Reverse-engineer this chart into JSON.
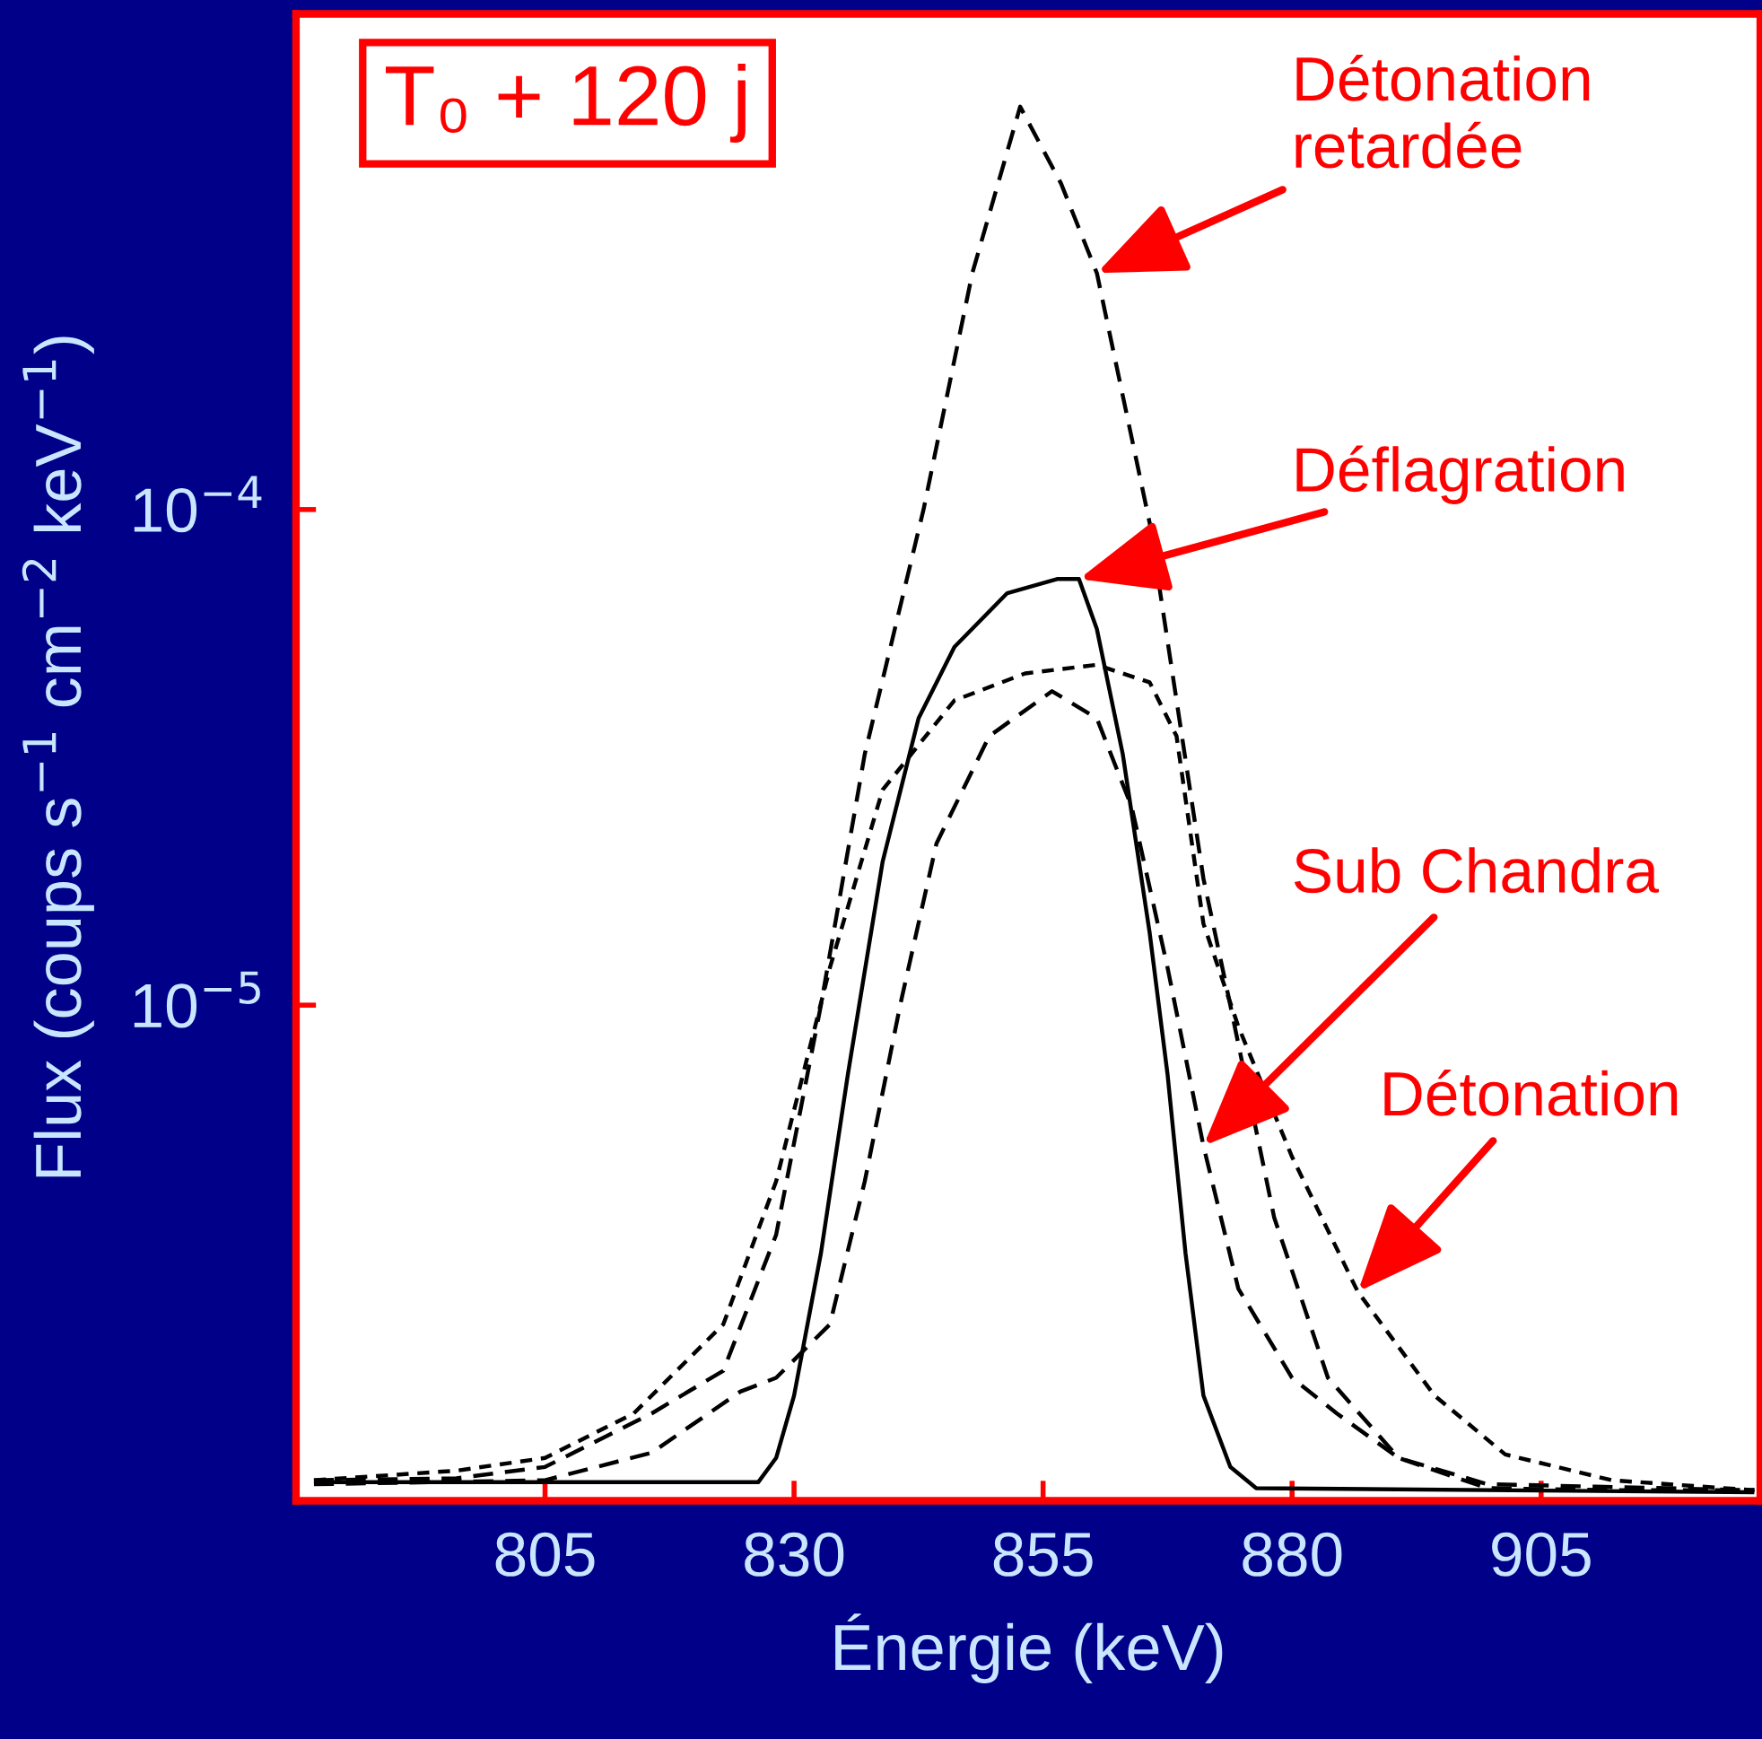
{
  "chart_data": {
    "type": "line",
    "xlabel": "Énergie (keV)",
    "ylabel": "Flux (coups s$^{−1}$ cm$^{−2}$ keV$^{−1}$)",
    "log": "y",
    "xlim": [
      780,
      927
    ],
    "xticks": [
      805,
      830,
      855,
      880,
      905
    ],
    "ylim": [
      1e-06,
      0.001
    ],
    "yticks": [
      {
        "value": 0.0001,
        "label": "10$^{−4}$"
      },
      {
        "value": 1e-05,
        "label": "10$^{−5}$"
      }
    ],
    "grid": false,
    "legend": false,
    "series": [
      {
        "color": "#000000",
        "line_style": "dashed",
        "x": [
          781.8,
          796.1,
          805,
          815.7,
          822.9,
          828.2,
          832.7,
          837.1,
          843.0,
          847.9,
          852.7,
          856.8,
          860.4,
          865.7,
          868.4,
          871.1,
          873.8,
          878.2,
          883.6,
          890.7,
          899.6,
          912.1,
          926.4
        ],
        "values": [
          1.1e-06,
          1.11e-06,
          1.17e-06,
          1.5e-06,
          1.83e-06,
          3.44e-06,
          1e-05,
          3.21e-05,
          0.0001,
          0.0003,
          0.00065,
          0.000455,
          0.0003,
          9.4e-05,
          4.12e-05,
          1.8e-05,
          1e-05,
          3.73e-06,
          1.77e-06,
          1.22e-06,
          1.06e-06,
          1.05e-06,
          1.05e-06
        ]
      },
      {
        "color": "#000000",
        "line_style": "solid",
        "x": [
          781.8,
          805,
          826.4,
          828.2,
          830.0,
          832.7,
          835.4,
          838.9,
          842.5,
          846.1,
          851.4,
          856.4,
          858.6,
          860.4,
          863.0,
          865.7,
          867.5,
          869.3,
          871.1,
          873.8,
          876.4,
          926.4
        ],
        "values": [
          1.09e-06,
          1.09e-06,
          1.09e-06,
          1.22e-06,
          1.63e-06,
          3.16e-06,
          7.24e-06,
          1.95e-05,
          3.79e-05,
          5.28e-05,
          6.78e-05,
          7.24e-05,
          7.24e-05,
          5.74e-05,
          3.21e-05,
          1.4e-05,
          7.24e-06,
          3.16e-06,
          1.63e-06,
          1.17e-06,
          1.06e-06,
          1.04e-06
        ]
      },
      {
        "color": "#000000",
        "line_style": "dashed",
        "x": [
          781.8,
          805,
          815.7,
          824.6,
          828.2,
          833.6,
          837.1,
          840.7,
          844.3,
          849.6,
          855.9,
          860.4,
          863.9,
          867.5,
          871.1,
          874.6,
          880,
          884.5,
          890.7,
          899.6,
          926.4
        ],
        "values": [
          1.08e-06,
          1.1e-06,
          1.25e-06,
          1.66e-06,
          1.77e-06,
          2.27e-06,
          4.41e-06,
          1.01e-05,
          2.12e-05,
          3.49e-05,
          4.3e-05,
          3.79e-05,
          2.51e-05,
          1.19e-05,
          5.2e-06,
          2.68e-06,
          1.77e-06,
          1.5e-06,
          1.22e-06,
          1.08e-06,
          1.05e-06
        ]
      },
      {
        "color": "#000000",
        "line_style": "dotted",
        "x": [
          781.8,
          796.1,
          805,
          813.9,
          822.9,
          828.2,
          833.6,
          838.9,
          846.1,
          853.2,
          860.4,
          865.7,
          868.4,
          871.1,
          874.6,
          880,
          886.6,
          894.3,
          901.4,
          912.1,
          926.4
        ],
        "values": [
          1.1e-06,
          1.15e-06,
          1.22e-06,
          1.5e-06,
          2.27e-06,
          4.41e-06,
          1.19e-05,
          2.72e-05,
          4.12e-05,
          4.67e-05,
          4.86e-05,
          4.48e-05,
          3.49e-05,
          1.46e-05,
          9.06e-06,
          4.94e-06,
          2.64e-06,
          1.63e-06,
          1.24e-06,
          1.1e-06,
          1.05e-06
        ]
      }
    ],
    "annotations": [
      "T₀ + 120 j",
      {
        "text": "Détonation\nretardée",
        "x": 860.4,
        "y": 0.0003
      },
      {
        "text": "Déflagration",
        "x": 858.6,
        "y": 7.24e-05
      },
      {
        "text": "Sub Chandra",
        "x": 871.1,
        "y": 5.2e-06
      },
      {
        "text": "Détonation",
        "x": 886.6,
        "y": 2.64e-06
      }
    ]
  }
}
